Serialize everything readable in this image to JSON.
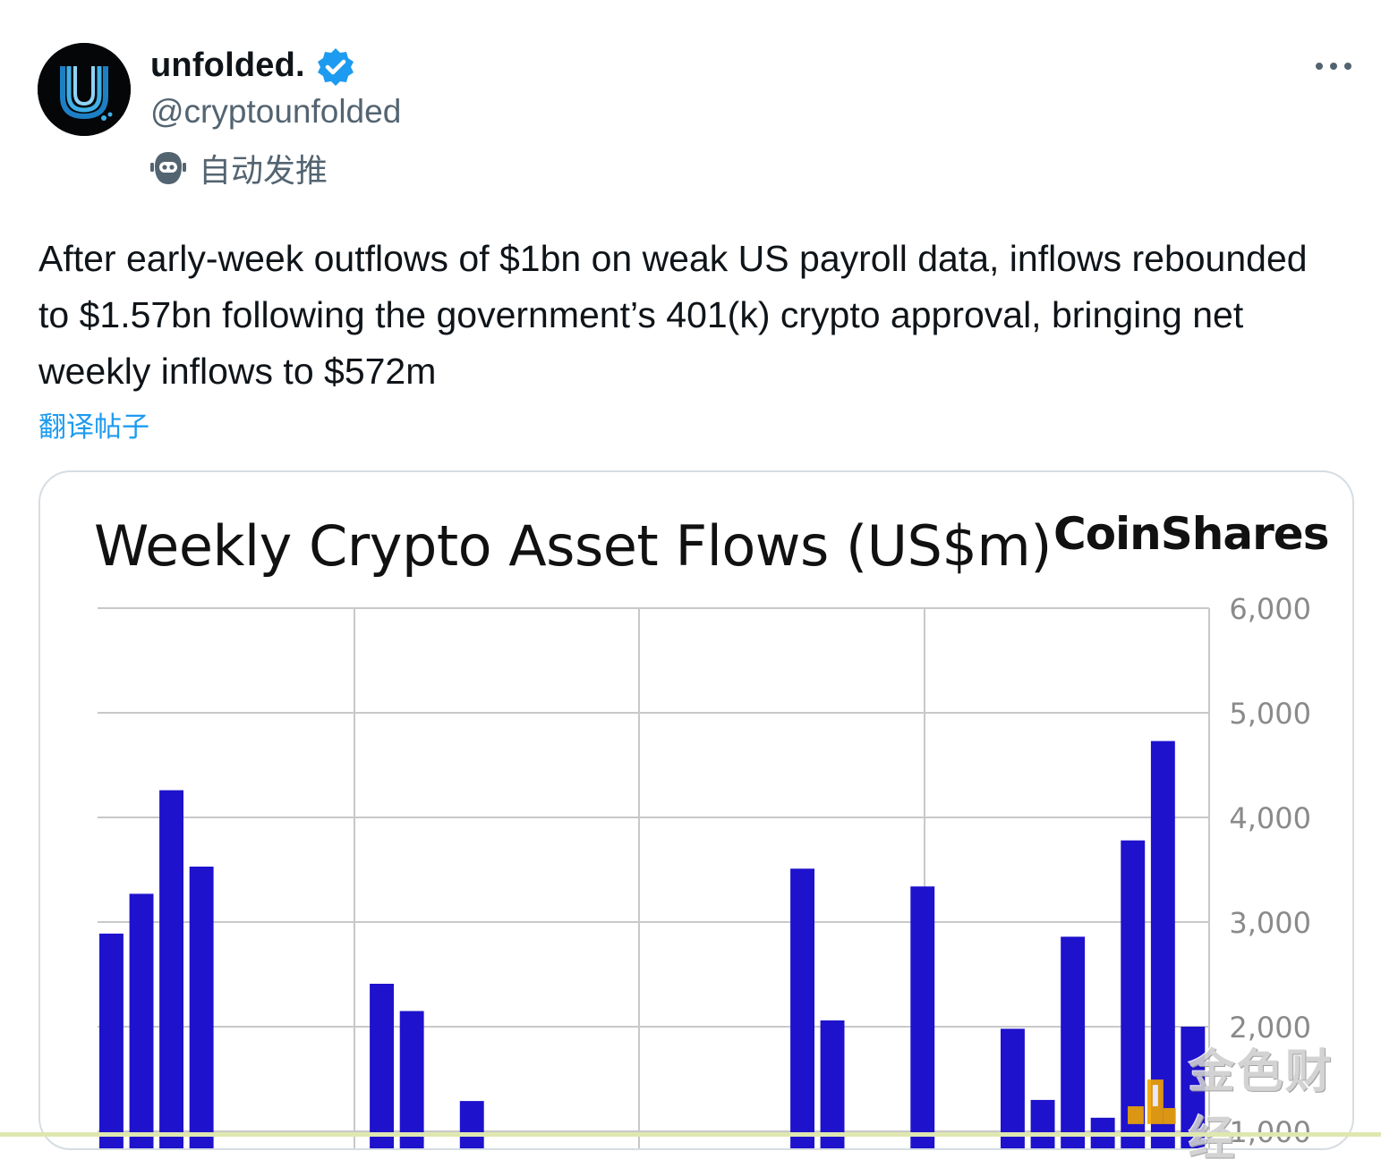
{
  "author": {
    "name": "unfolded.",
    "handle": "@cryptounfolded",
    "automated_label": "自动发推",
    "verified": true,
    "avatar_icon": "unfolded-logo-icon"
  },
  "tweet": {
    "text": "After early-week outflows of $1bn on weak US payroll data, inflows rebounded to $1.57bn following the government’s 401(k) crypto approval, bringing net weekly inflows to $572m",
    "translate_label": "翻译帖子"
  },
  "colors": {
    "accent": "#1d9bf0",
    "bar": "#1e12cc",
    "secondary_text": "#536471"
  },
  "media": {
    "brand": "CoinShares",
    "watermark": "金色财经"
  },
  "chart_data": {
    "type": "bar",
    "title": "Weekly Crypto Asset Flows (US$m)",
    "xlabel": "",
    "ylabel": "",
    "y_axis_position": "right",
    "grid": true,
    "ylim_visible": [
      1000,
      6000
    ],
    "y_ticks": [
      {
        "value": 6000,
        "label": "6,000"
      },
      {
        "value": 5000,
        "label": "5,000"
      },
      {
        "value": 4000,
        "label": "4,000"
      },
      {
        "value": 3000,
        "label": "3,000"
      },
      {
        "value": 2000,
        "label": "2,000"
      },
      {
        "value": 1000,
        "label": "1,000"
      }
    ],
    "values": [
      2890,
      3270,
      4260,
      3530,
      0,
      0,
      0,
      0,
      0,
      2410,
      2150,
      0,
      1290,
      0,
      0,
      0,
      0,
      0,
      0,
      0,
      0,
      0,
      0,
      3510,
      2060,
      0,
      0,
      3340,
      0,
      0,
      1980,
      1300,
      2860,
      1130,
      3780,
      4730,
      2000
    ]
  }
}
